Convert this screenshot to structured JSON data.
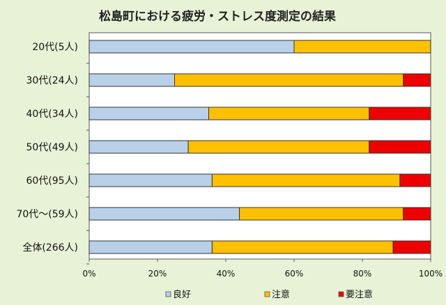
{
  "chart_data": {
    "type": "bar",
    "stacked": true,
    "orientation": "horizontal",
    "title": "松島町における疲労・ストレス度測定の結果",
    "categories": [
      "20代(5人)",
      "30代(24人)",
      "40代(34人)",
      "50代(49人)",
      "60代(95人)",
      "70代～(59人)",
      "全体(266人)"
    ],
    "series": [
      {
        "name": "良好",
        "color": "#b9d0e8",
        "values": [
          60,
          25,
          35,
          29,
          36,
          44,
          36
        ]
      },
      {
        "name": "注意",
        "color": "#ffc000",
        "values": [
          40,
          67,
          47,
          53,
          55,
          48,
          53
        ]
      },
      {
        "name": "要注意",
        "color": "#ee0000",
        "values": [
          0,
          8,
          18,
          18,
          9,
          8,
          11
        ]
      }
    ],
    "xlim": [
      0,
      100
    ],
    "xticks": [
      "0%",
      "20%",
      "40%",
      "60%",
      "80%",
      "100%"
    ],
    "legend_position": "bottom",
    "grid": false
  }
}
